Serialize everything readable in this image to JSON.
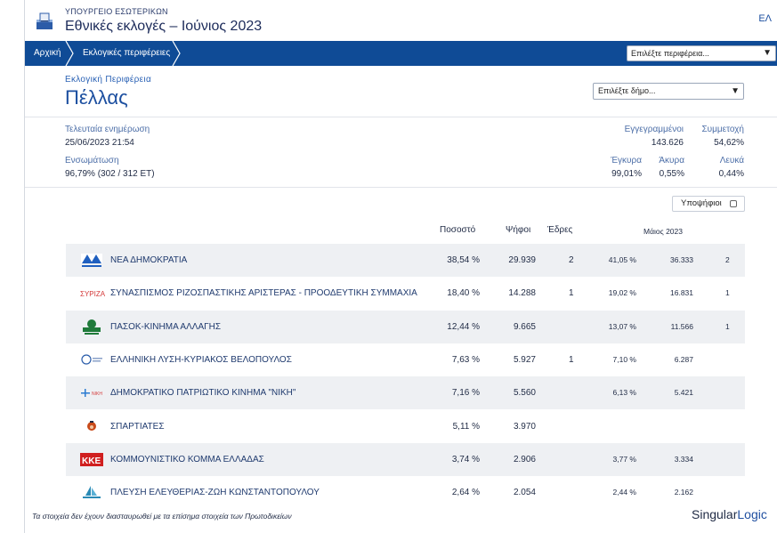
{
  "header": {
    "ministry": "ΥΠΟΥΡΓΕΙΟ ΕΣΩΤΕΡΙΚΩΝ",
    "title": "Εθνικές εκλογές – Ιούνιος 2023",
    "lang": "ΕΛ"
  },
  "nav": {
    "home": "Αρχική",
    "regions": "Εκλογικές περιφέρειες",
    "region_select": "Επιλέξτε περιφέρεια..."
  },
  "region": {
    "label": "Εκλογική Περιφέρεια",
    "name": "Πέλλας",
    "municipality_select": "Επιλέξτε δήμο..."
  },
  "stats": {
    "last_update_label": "Τελευταία ενημέρωση",
    "last_update_value": "25/06/2023 21:54",
    "integration_label": "Ενσωμάτωση",
    "integration_value": "96,79% (302 / 312 ΕΤ)",
    "registered_label": "Εγγεγραμμένοι",
    "registered_value": "143.626",
    "turnout_label": "Συμμετοχή",
    "turnout_value": "54,62%",
    "valid_label": "Έγκυρα",
    "valid_value": "99,01%",
    "invalid_label": "Άκυρα",
    "invalid_value": "0,55%",
    "blank_label": "Λευκά",
    "blank_value": "0,44%"
  },
  "candidates_toggle": "Υποψήφιοι",
  "table": {
    "headers": {
      "percent": "Ποσοστό",
      "votes": "Ψήφοι",
      "seats": "Έδρες",
      "prev": "Μάιος 2023"
    },
    "rows": [
      {
        "name": "ΝΕΑ ΔΗΜΟΚΡΑΤΙΑ",
        "pct": "38,54 %",
        "votes": "29.939",
        "seats": "2",
        "ppct": "41,05 %",
        "pvotes": "36.333",
        "pseats": "2",
        "logo": "nd-logo"
      },
      {
        "name": "ΣΥΝΑΣΠΙΣΜΟΣ ΡΙΖΟΣΠΑΣΤΙΚΗΣ ΑΡΙΣΤΕΡΑΣ - ΠΡΟΟΔΕΥΤΙΚΗ ΣΥΜΜΑΧΙΑ",
        "pct": "18,40 %",
        "votes": "14.288",
        "seats": "1",
        "ppct": "19,02 %",
        "pvotes": "16.831",
        "pseats": "1",
        "logo": "syriza-logo"
      },
      {
        "name": "ΠΑΣΟΚ-ΚΙΝΗΜΑ ΑΛΛΑΓΗΣ",
        "pct": "12,44 %",
        "votes": "9.665",
        "seats": "",
        "ppct": "13,07 %",
        "pvotes": "11.566",
        "pseats": "1",
        "logo": "pasok-logo"
      },
      {
        "name": "ΕΛΛΗΝΙΚΗ ΛΥΣΗ-ΚΥΡΙΑΚΟΣ ΒΕΛΟΠΟΥΛΟΣ",
        "pct": "7,63 %",
        "votes": "5.927",
        "seats": "1",
        "ppct": "7,10 %",
        "pvotes": "6.287",
        "pseats": "",
        "logo": "elliniki-lysi-logo"
      },
      {
        "name": "ΔΗΜΟΚΡΑΤΙΚΟ ΠΑΤΡΙΩΤΙΚΟ ΚΙΝΗΜΑ \"ΝΙΚΗ\"",
        "pct": "7,16 %",
        "votes": "5.560",
        "seats": "",
        "ppct": "6,13 %",
        "pvotes": "5.421",
        "pseats": "",
        "logo": "niki-logo"
      },
      {
        "name": "ΣΠΑΡΤΙΑΤΕΣ",
        "pct": "5,11 %",
        "votes": "3.970",
        "seats": "",
        "ppct": "",
        "pvotes": "",
        "pseats": "",
        "logo": "spartiates-logo"
      },
      {
        "name": "ΚΟΜΜΟΥΝΙΣΤΙΚΟ ΚΟΜΜΑ ΕΛΛΑΔΑΣ",
        "pct": "3,74 %",
        "votes": "2.906",
        "seats": "",
        "ppct": "3,77 %",
        "pvotes": "3.334",
        "pseats": "",
        "logo": "kke-logo"
      },
      {
        "name": "ΠΛΕΥΣΗ ΕΛΕΥΘΕΡΙΑΣ-ΖΩΗ ΚΩΝΣΤΑΝΤΟΠΟΥΛΟΥ",
        "pct": "2,64 %",
        "votes": "2.054",
        "seats": "",
        "ppct": "2,44 %",
        "pvotes": "2.162",
        "pseats": "",
        "logo": "plefsi-logo"
      }
    ]
  },
  "footer": {
    "note": "Τα στοιχεία δεν έχουν διασταυρωθεί με τα επίσημα στοιχεία των Πρωτοδικείων",
    "brand_a": "Singular",
    "brand_b": "Logic"
  },
  "colors": {
    "nav_bg": "#0f4b96",
    "accent": "#1c4fa0",
    "row_alt": "#eef0f3"
  }
}
